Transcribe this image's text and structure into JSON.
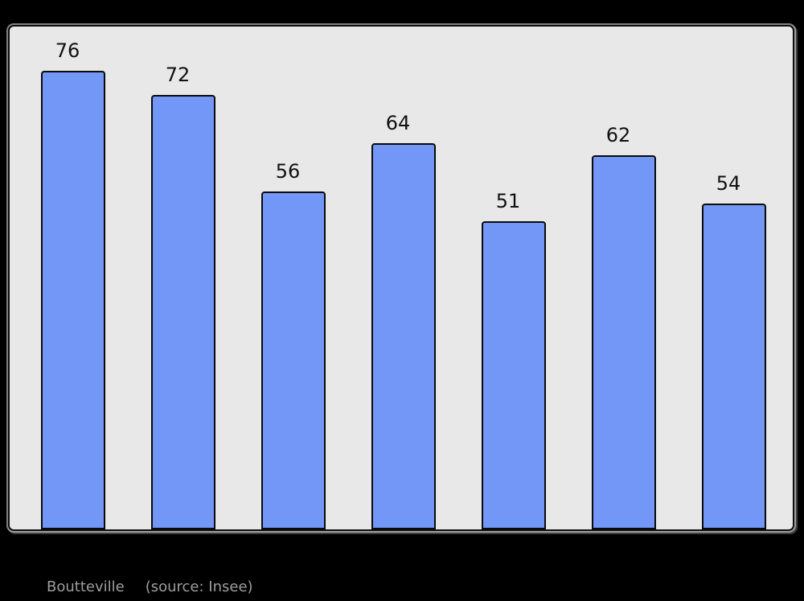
{
  "page": {
    "background": "#000000"
  },
  "colors": {
    "page_bg": "#000000",
    "plot_bg": "#e8e8e8",
    "frame_border": "#0d0d0d",
    "bar_fill": "#7397f7",
    "bar_border": "#0a0a0a",
    "value_label": "#111111",
    "caption_text": "#9e9e9e"
  },
  "chart_data": {
    "type": "bar",
    "values": [
      76,
      72,
      56,
      64,
      51,
      62,
      54
    ],
    "data_labels": [
      "76",
      "72",
      "56",
      "64",
      "51",
      "62",
      "54"
    ],
    "title": "",
    "xlabel": "",
    "ylabel": "",
    "ylim": [
      0,
      83
    ],
    "x_tick_labels_visible": false,
    "y_axis_visible": false,
    "grid": false,
    "legend": false,
    "bar_color": "#7397f7",
    "bar_outline": "#0a0a0a",
    "plot_background": "#e8e8e8"
  },
  "caption": {
    "location": "Boutteville",
    "source": "(source: Insee)"
  }
}
